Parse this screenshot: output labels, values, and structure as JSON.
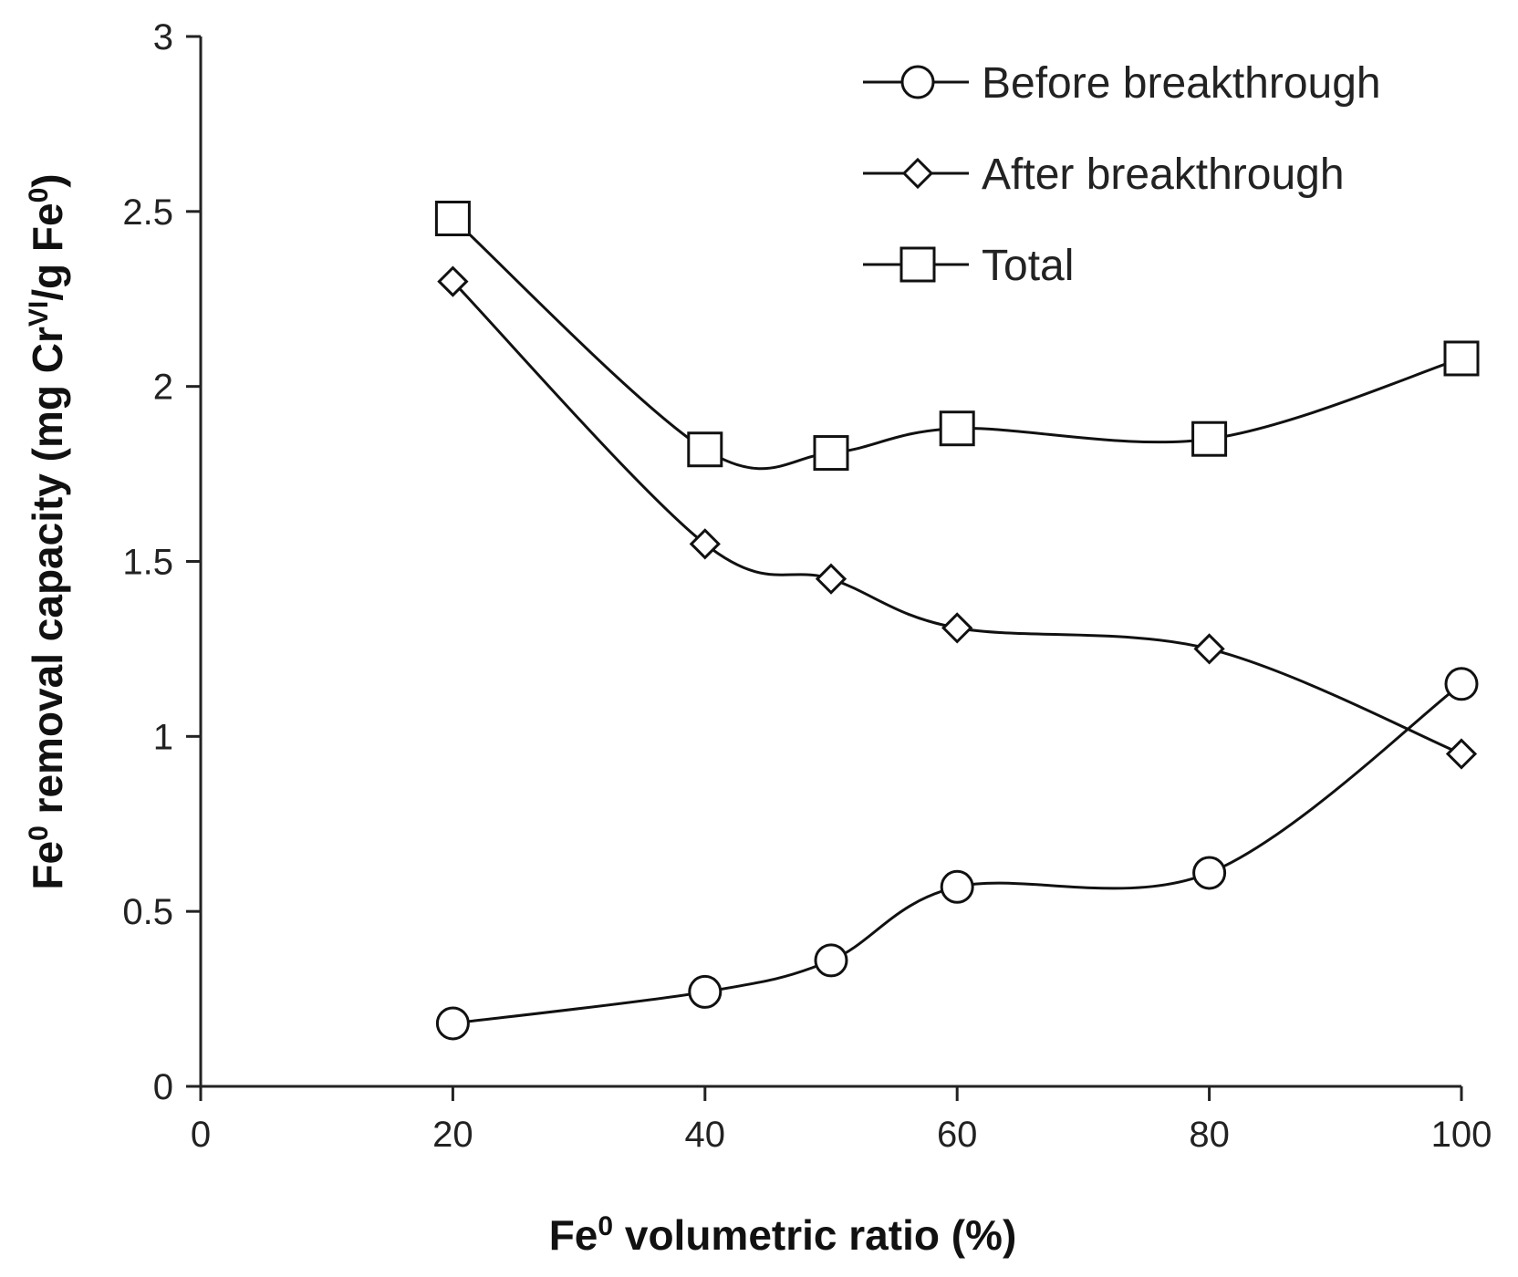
{
  "chart_data": {
    "type": "line",
    "x": [
      20,
      40,
      50,
      60,
      80,
      100
    ],
    "series": [
      {
        "name": "Before breakthrough",
        "marker": "circle",
        "values": [
          0.18,
          0.27,
          0.36,
          0.57,
          0.61,
          1.15
        ]
      },
      {
        "name": "After breakthrough",
        "marker": "diamond",
        "values": [
          2.3,
          1.55,
          1.45,
          1.31,
          1.25,
          0.95
        ]
      },
      {
        "name": "Total",
        "marker": "square",
        "values": [
          2.48,
          1.82,
          1.81,
          1.88,
          1.85,
          2.08
        ]
      }
    ],
    "xlim": [
      0,
      100
    ],
    "ylim": [
      0,
      3
    ],
    "xticks": [
      0,
      20,
      40,
      60,
      80,
      100
    ],
    "yticks": [
      0,
      0.5,
      1,
      1.5,
      2,
      2.5,
      3
    ],
    "xtick_labels": [
      "0",
      "20",
      "40",
      "60",
      "80",
      "100"
    ],
    "ytick_labels": [
      "0",
      "0.5",
      "1",
      "1.5",
      "2",
      "2.5",
      "3"
    ],
    "xlabel": {
      "prefix": "Fe",
      "prefix_sup": "0",
      "rest": " volumetric ratio (%)"
    },
    "ylabel": {
      "prefix": "Fe",
      "prefix_sup": "0",
      "middle": " removal capacity (mg Cr",
      "middle_sup": "VI",
      "after": "/g Fe",
      "after_sup": "0",
      "end": ")"
    },
    "legend_position": "top-right",
    "grid": false,
    "line_color": "#111111",
    "smooth": true
  }
}
